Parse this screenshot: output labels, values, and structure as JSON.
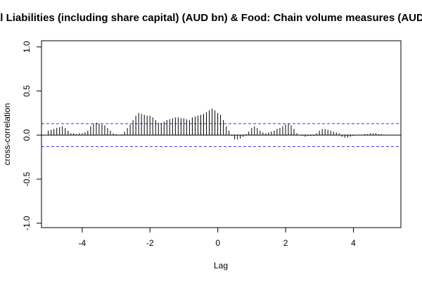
{
  "chart_data": {
    "type": "bar",
    "title": "Total Liabilities (including share capital) (AUD bn)  & Food: Chain volume measures (AUD bn)",
    "xlabel": "Lag",
    "ylabel": "cross-correlation",
    "xlim": [
      -5.2,
      5.4
    ],
    "ylim": [
      -1.05,
      1.07
    ],
    "x_ticks": [
      -4,
      -2,
      0,
      2,
      4
    ],
    "x_tick_labels": [
      "-4",
      "-2",
      "0",
      "2",
      "4"
    ],
    "y_ticks": [
      -1.0,
      -0.5,
      0.0,
      0.5,
      1.0
    ],
    "y_tick_labels": [
      "-1.0",
      "-0.5",
      "0.0",
      "0.5",
      "1.0"
    ],
    "confidence_bound": 0.13,
    "lag_step": 0.0833,
    "x_start": -5.0,
    "values": [
      0.05,
      0.06,
      0.07,
      0.08,
      0.09,
      0.1,
      0.08,
      0.05,
      0.02,
      0.02,
      0.01,
      0.02,
      0.02,
      0.03,
      0.05,
      0.1,
      0.13,
      0.14,
      0.13,
      0.12,
      0.11,
      0.08,
      0.05,
      0.02,
      0.01,
      0.0,
      0.01,
      0.04,
      0.08,
      0.12,
      0.17,
      0.22,
      0.25,
      0.24,
      0.23,
      0.22,
      0.22,
      0.2,
      0.17,
      0.14,
      0.13,
      0.15,
      0.17,
      0.18,
      0.19,
      0.2,
      0.2,
      0.19,
      0.19,
      0.18,
      0.17,
      0.2,
      0.21,
      0.22,
      0.23,
      0.24,
      0.26,
      0.28,
      0.3,
      0.28,
      0.25,
      0.23,
      0.17,
      0.1,
      0.05,
      -0.01,
      -0.05,
      -0.05,
      -0.04,
      -0.02,
      0.01,
      0.04,
      0.08,
      0.1,
      0.08,
      0.05,
      0.03,
      0.02,
      0.03,
      0.04,
      0.05,
      0.07,
      0.08,
      0.1,
      0.12,
      0.13,
      0.11,
      0.07,
      0.02,
      0.0,
      -0.01,
      -0.02,
      -0.01,
      -0.01,
      -0.01,
      0.02,
      0.05,
      0.07,
      0.07,
      0.06,
      0.05,
      0.04,
      0.03,
      0.02,
      -0.02,
      -0.03,
      -0.03,
      -0.02,
      -0.01,
      0.0,
      0.0,
      0.0,
      0.01,
      0.01,
      0.02,
      0.02,
      0.02,
      0.01,
      0.01,
      0.0,
      0.0
    ],
    "colors": {
      "bars": "#000000",
      "ci_line": "#3333dd",
      "zero_line": "#000000",
      "frame": "#000000"
    }
  }
}
